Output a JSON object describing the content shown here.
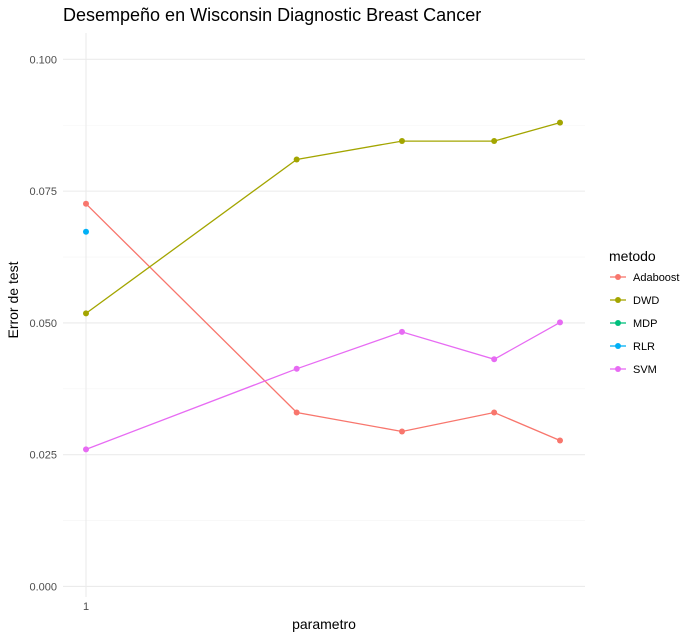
{
  "chart_data": {
    "type": "line",
    "title": "Desempeño en Wisconsin Diagnostic Breast Cancer",
    "xlabel": "parametro",
    "ylabel": "Error de test",
    "x_tick_labels": [
      "1"
    ],
    "xlim": [
      1,
      10
    ],
    "ylim": [
      -0.002,
      0.105
    ],
    "y_ticks": [
      0.0,
      0.025,
      0.05,
      0.075,
      0.1
    ],
    "y_tick_labels": [
      "0.000",
      "0.025",
      "0.050",
      "0.075",
      "0.100"
    ],
    "grid": true,
    "legend": {
      "title": "metodo",
      "position": "right"
    },
    "series": [
      {
        "name": "Adaboost",
        "color": "#F8766D",
        "points": [
          [
            1,
            0.0726
          ],
          [
            5,
            0.033
          ],
          [
            7,
            0.0294
          ],
          [
            8.75,
            0.033
          ],
          [
            10,
            0.0277
          ]
        ]
      },
      {
        "name": "DWD",
        "color": "#A3A500",
        "points": [
          [
            1,
            0.0518
          ],
          [
            5,
            0.081
          ],
          [
            7,
            0.0845
          ],
          [
            8.75,
            0.0845
          ],
          [
            10,
            0.088
          ]
        ]
      },
      {
        "name": "MDP",
        "color": "#00BF7D",
        "points": []
      },
      {
        "name": "RLR",
        "color": "#00B0F6",
        "points": [
          [
            1,
            0.0673
          ]
        ]
      },
      {
        "name": "SVM",
        "color": "#E76BF3",
        "points": [
          [
            1,
            0.026
          ],
          [
            5,
            0.0413
          ],
          [
            7,
            0.0483
          ],
          [
            8.75,
            0.0431
          ],
          [
            10,
            0.0501
          ]
        ]
      }
    ]
  }
}
